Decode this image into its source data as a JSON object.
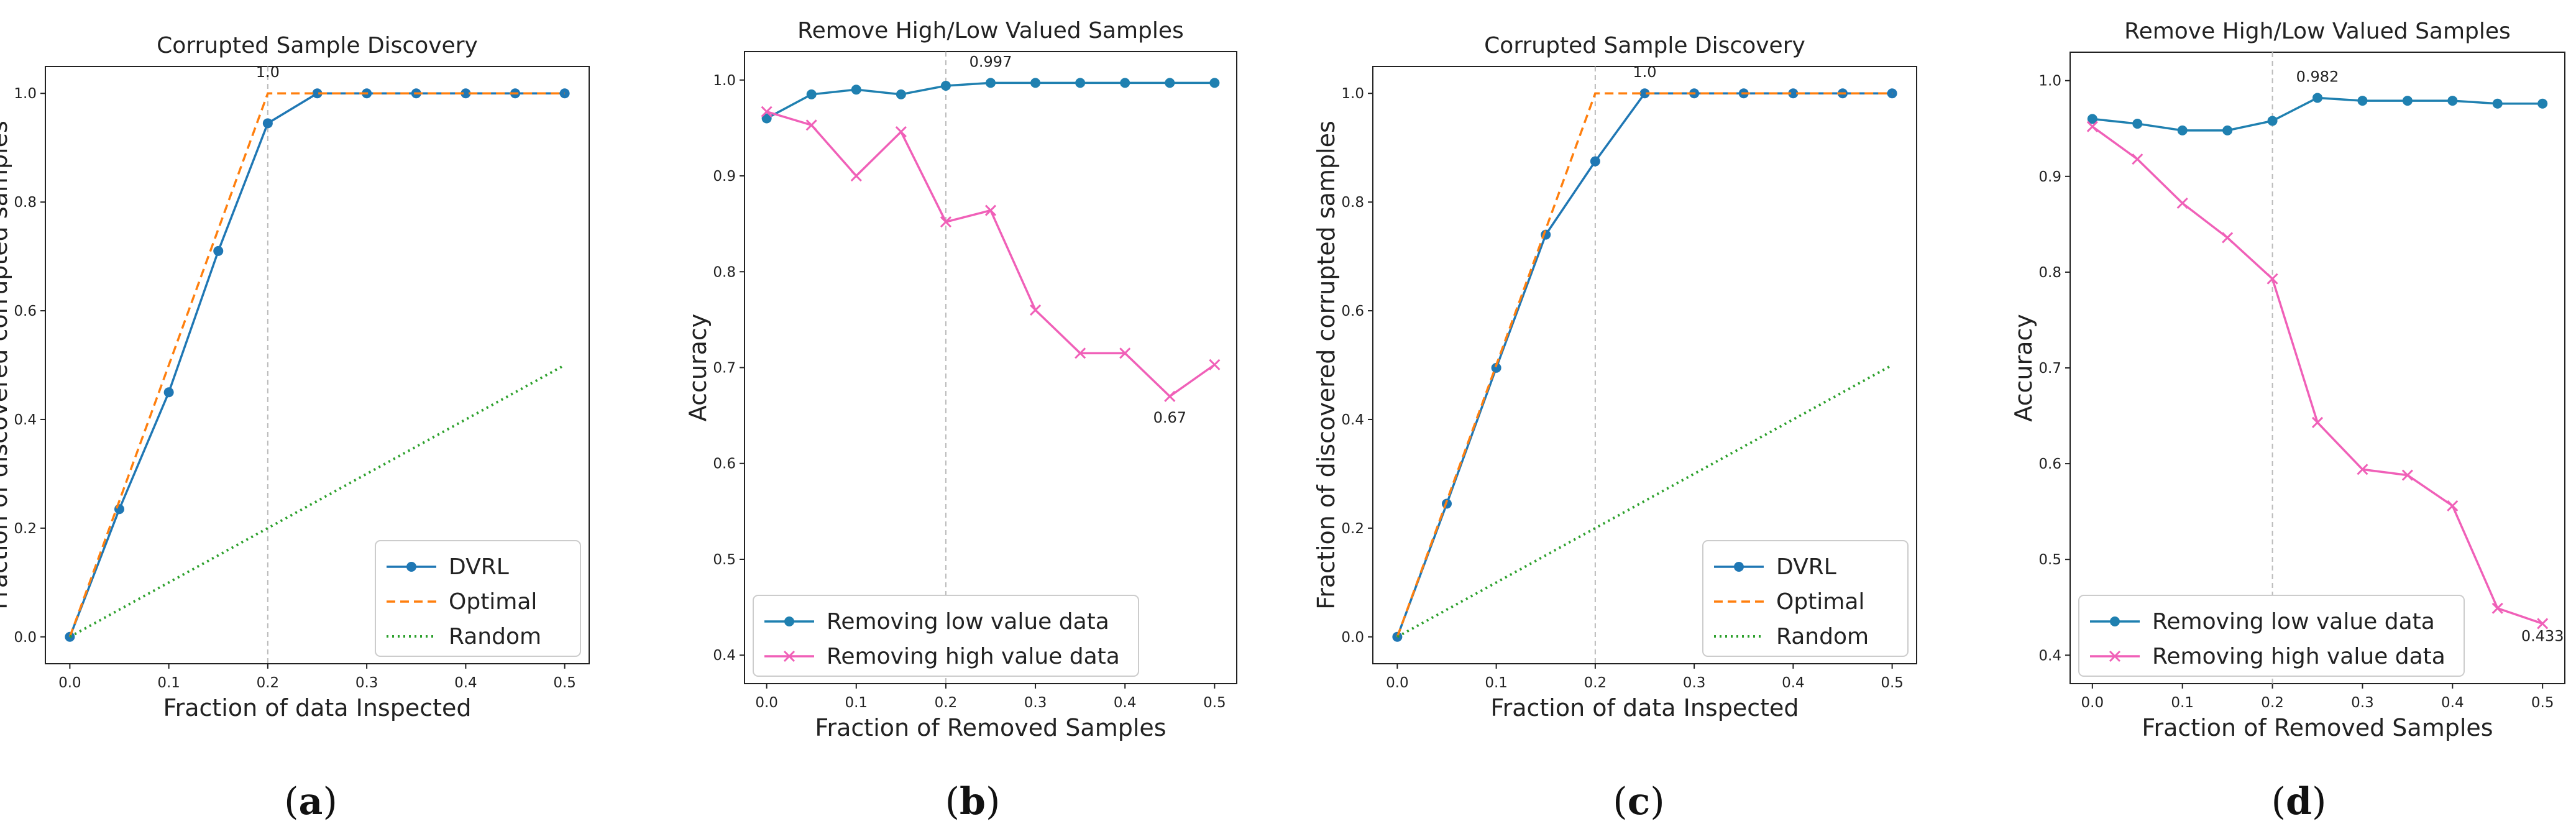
{
  "figure": {
    "panel_labels": [
      {
        "open": "(",
        "letter": "a",
        "close": ")"
      },
      {
        "open": "(",
        "letter": "b",
        "close": ")"
      },
      {
        "open": "(",
        "letter": "c",
        "close": ")"
      },
      {
        "open": "(",
        "letter": "d",
        "close": ")"
      }
    ]
  },
  "colors": {
    "dvrl_blue": "#1f77b4",
    "low_value_blue": "#1f80b0",
    "optimal_orange": "#ff7f0e",
    "random_green": "#2ca02c",
    "high_value_pink": "#f060b8",
    "vline_gray": "#bbbbbb"
  },
  "chart_data": [
    {
      "type": "line",
      "panel": "a",
      "title": "Corrupted Sample Discovery",
      "xlabel": "Fraction of data Inspected",
      "ylabel": "Fraction of discovered corrupted samples",
      "xlim": [
        0,
        0.5
      ],
      "ylim": [
        0,
        1.0
      ],
      "xticks": [
        "0.0",
        "0.1",
        "0.2",
        "0.3",
        "0.4",
        "0.5"
      ],
      "yticks": [
        "0.0",
        "0.2",
        "0.4",
        "0.6",
        "0.8",
        "1.0"
      ],
      "vline_x": 0.2,
      "legend_position": "lower-right",
      "annotations": [
        {
          "x": 0.2,
          "y": 1.0,
          "text": "1.0"
        }
      ],
      "series": [
        {
          "name": "DVRL",
          "style": "solid-dot",
          "x": [
            0,
            0.05,
            0.1,
            0.15,
            0.2,
            0.25,
            0.3,
            0.35,
            0.4,
            0.45,
            0.5
          ],
          "y": [
            0,
            0.235,
            0.45,
            0.71,
            0.945,
            1.0,
            1.0,
            1.0,
            1.0,
            1.0,
            1.0
          ]
        },
        {
          "name": "Optimal",
          "style": "dashed",
          "x": [
            0,
            0.2,
            0.5
          ],
          "y": [
            0,
            1.0,
            1.0
          ]
        },
        {
          "name": "Random",
          "style": "dotted",
          "x": [
            0,
            0.5
          ],
          "y": [
            0,
            0.5
          ]
        }
      ]
    },
    {
      "type": "line",
      "panel": "b",
      "title": "Remove High/Low Valued Samples",
      "xlabel": "Fraction of Removed Samples",
      "ylabel": "Accuracy",
      "xlim": [
        0,
        0.5
      ],
      "ylim": [
        0.4,
        1.0
      ],
      "xticks": [
        "0.0",
        "0.1",
        "0.2",
        "0.3",
        "0.4",
        "0.5"
      ],
      "yticks": [
        "0.4",
        "0.5",
        "0.6",
        "0.7",
        "0.8",
        "0.9",
        "1.0"
      ],
      "vline_x": 0.2,
      "legend_position": "lower-left",
      "annotations": [
        {
          "x": 0.25,
          "y": 0.997,
          "text": "0.997"
        },
        {
          "x": 0.45,
          "y": 0.67,
          "text": "0.67"
        }
      ],
      "series": [
        {
          "name": "Removing low value data",
          "style": "solid-dot",
          "x": [
            0,
            0.05,
            0.1,
            0.15,
            0.2,
            0.25,
            0.3,
            0.35,
            0.4,
            0.45,
            0.5
          ],
          "y": [
            0.96,
            0.985,
            0.99,
            0.985,
            0.994,
            0.997,
            0.997,
            0.997,
            0.997,
            0.997,
            0.997
          ]
        },
        {
          "name": "Removing high value data",
          "style": "solid-x",
          "x": [
            0,
            0.05,
            0.1,
            0.15,
            0.2,
            0.25,
            0.3,
            0.35,
            0.4,
            0.45,
            0.5
          ],
          "y": [
            0.967,
            0.953,
            0.9,
            0.946,
            0.852,
            0.864,
            0.76,
            0.715,
            0.715,
            0.67,
            0.703
          ]
        }
      ]
    },
    {
      "type": "line",
      "panel": "c",
      "title": "Corrupted Sample Discovery",
      "xlabel": "Fraction of data Inspected",
      "ylabel": "Fraction of discovered corrupted samples",
      "xlim": [
        0,
        0.5
      ],
      "ylim": [
        0,
        1.0
      ],
      "xticks": [
        "0.0",
        "0.1",
        "0.2",
        "0.3",
        "0.4",
        "0.5"
      ],
      "yticks": [
        "0.0",
        "0.2",
        "0.4",
        "0.6",
        "0.8",
        "1.0"
      ],
      "vline_x": 0.2,
      "legend_position": "lower-right",
      "annotations": [
        {
          "x": 0.25,
          "y": 1.0,
          "text": "1.0"
        }
      ],
      "series": [
        {
          "name": "DVRL",
          "style": "solid-dot",
          "x": [
            0,
            0.05,
            0.1,
            0.15,
            0.2,
            0.25,
            0.3,
            0.35,
            0.4,
            0.45,
            0.5
          ],
          "y": [
            0,
            0.245,
            0.495,
            0.74,
            0.875,
            1.0,
            1.0,
            1.0,
            1.0,
            1.0,
            1.0
          ]
        },
        {
          "name": "Optimal",
          "style": "dashed",
          "x": [
            0,
            0.2,
            0.5
          ],
          "y": [
            0,
            1.0,
            1.0
          ]
        },
        {
          "name": "Random",
          "style": "dotted",
          "x": [
            0,
            0.5
          ],
          "y": [
            0,
            0.5
          ]
        }
      ]
    },
    {
      "type": "line",
      "panel": "d",
      "title": "Remove High/Low Valued Samples",
      "xlabel": "Fraction of Removed Samples",
      "ylabel": "Accuracy",
      "xlim": [
        0,
        0.5
      ],
      "ylim": [
        0.4,
        1.0
      ],
      "xticks": [
        "0.0",
        "0.1",
        "0.2",
        "0.3",
        "0.4",
        "0.5"
      ],
      "yticks": [
        "0.4",
        "0.5",
        "0.6",
        "0.7",
        "0.8",
        "0.9",
        "1.0"
      ],
      "vline_x": 0.2,
      "legend_position": "lower-left",
      "annotations": [
        {
          "x": 0.25,
          "y": 0.982,
          "text": "0.982"
        },
        {
          "x": 0.5,
          "y": 0.433,
          "text": "0.433"
        }
      ],
      "series": [
        {
          "name": "Removing low value data",
          "style": "solid-dot",
          "x": [
            0,
            0.05,
            0.1,
            0.15,
            0.2,
            0.25,
            0.3,
            0.35,
            0.4,
            0.45,
            0.5
          ],
          "y": [
            0.96,
            0.955,
            0.948,
            0.948,
            0.958,
            0.982,
            0.979,
            0.979,
            0.979,
            0.976,
            0.976
          ]
        },
        {
          "name": "Removing high value data",
          "style": "solid-x",
          "x": [
            0,
            0.05,
            0.1,
            0.15,
            0.2,
            0.25,
            0.3,
            0.35,
            0.4,
            0.45,
            0.5
          ],
          "y": [
            0.952,
            0.918,
            0.872,
            0.836,
            0.793,
            0.643,
            0.594,
            0.588,
            0.556,
            0.449,
            0.433
          ]
        }
      ]
    }
  ]
}
